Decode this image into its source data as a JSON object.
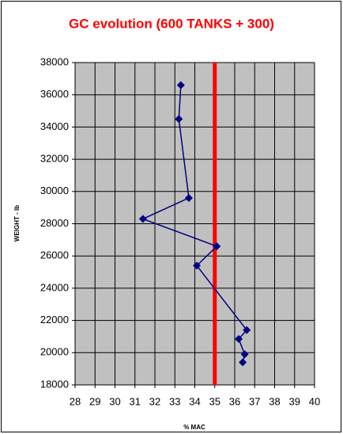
{
  "chart_data": {
    "type": "line",
    "title": "GC evolution (600 TANKS + 300)",
    "x_label": "% MAC",
    "y_label": "WEIGHT - lb",
    "x": [
      33.3,
      33.2,
      33.7,
      31.4,
      35.1,
      34.1,
      36.6,
      36.2,
      36.5,
      36.4
    ],
    "series": [
      {
        "name": "GC",
        "color": "#000080",
        "values": [
          36600,
          34500,
          29600,
          28300,
          26600,
          25400,
          21400,
          20850,
          19900,
          19400
        ]
      }
    ],
    "reference_line": {
      "x": 35,
      "color": "#ff0000"
    },
    "xlim": [
      28,
      40
    ],
    "xticks": [
      28,
      29,
      30,
      31,
      32,
      33,
      34,
      35,
      36,
      37,
      38,
      39,
      40
    ],
    "ylim": [
      18000,
      38000
    ],
    "yticks": [
      18000,
      20000,
      22000,
      24000,
      26000,
      28000,
      30000,
      32000,
      34000,
      36000,
      38000
    ],
    "grid": true
  }
}
